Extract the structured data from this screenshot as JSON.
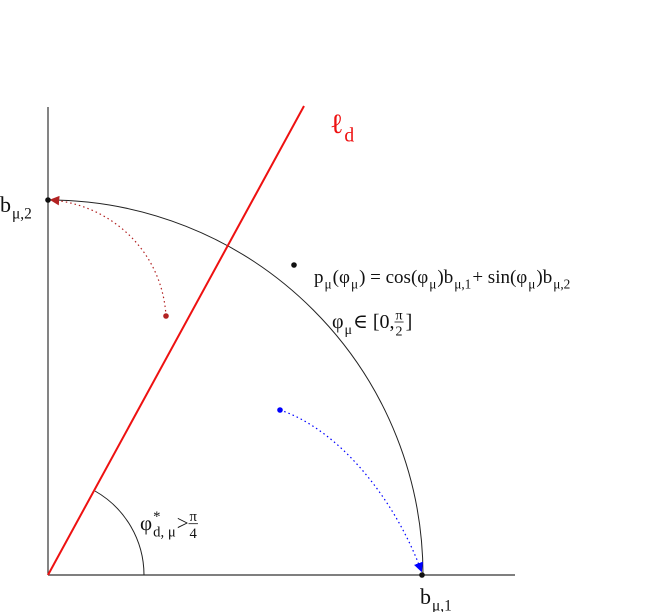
{
  "line_label": [
    {
      "text": "ℓ"
    },
    {
      "sub": "d"
    }
  ],
  "b2": [
    {
      "text": "b"
    },
    {
      "sub": "μ,2"
    }
  ],
  "b1": [
    {
      "text": "b"
    },
    {
      "sub": "μ,1"
    }
  ],
  "formula": [
    {
      "text": "p"
    },
    {
      "sub": "μ"
    },
    {
      "text": "(φ"
    },
    {
      "sub": "μ"
    },
    {
      "text": ") = cos(φ"
    },
    {
      "sub": "μ"
    },
    {
      "text": ")b"
    },
    {
      "sub": "μ,1"
    },
    {
      "text": " + sin(φ"
    },
    {
      "sub": "μ"
    },
    {
      "text": ")b"
    },
    {
      "sub": "μ,2"
    }
  ],
  "range": [
    {
      "text": "φ"
    },
    {
      "sub": "μ"
    },
    {
      "text": " ∈ [0, "
    },
    {
      "num": "π",
      "den": "2"
    },
    {
      "text": "]"
    }
  ],
  "angle": [
    {
      "text": "φ"
    },
    {
      "sup": "*",
      "sub": "d, μ"
    },
    {
      "text": " > "
    },
    {
      "num": "π",
      "den": "4"
    }
  ]
}
